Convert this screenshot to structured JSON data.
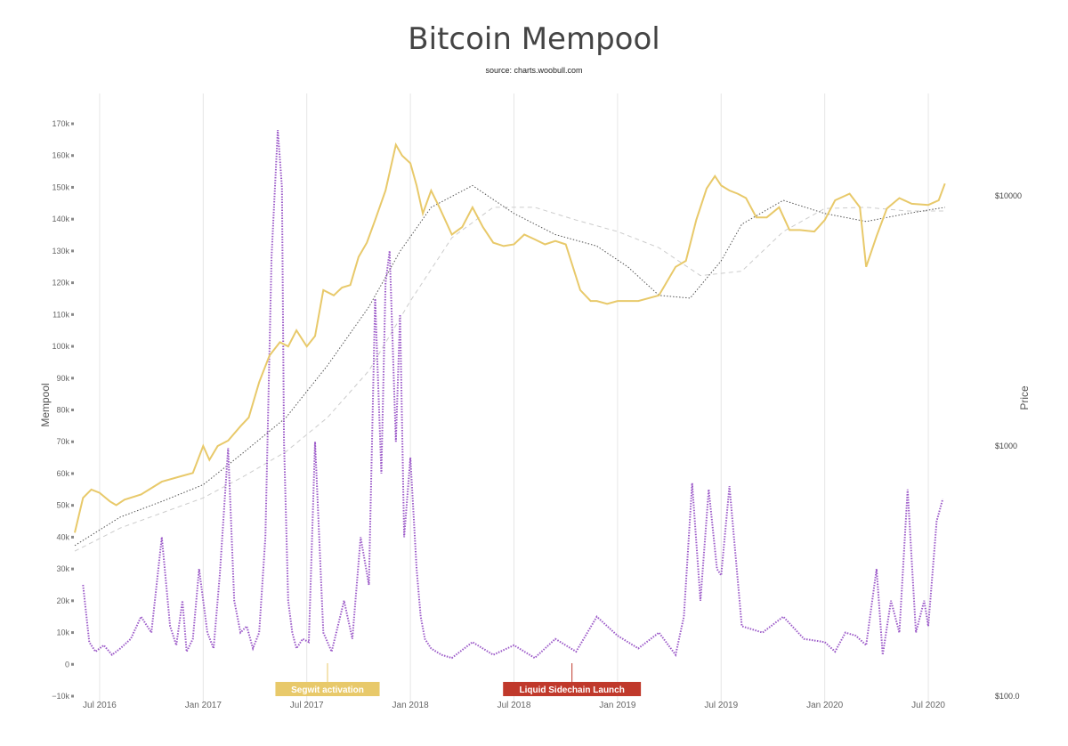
{
  "chart_data": {
    "type": "line",
    "title": "Bitcoin Mempool",
    "subtitle": "source: charts.woobull.com",
    "ylabel_left": "Mempool",
    "ylabel_right": "Price",
    "x_tick_labels": [
      "Jul 2016",
      "Jan 2017",
      "Jul 2017",
      "Jan 2018",
      "Jul 2018",
      "Jan 2019",
      "Jul 2019",
      "Jan 2020",
      "Jul 2020"
    ],
    "x_ticks_year": [
      2016.5,
      2017.0,
      2017.5,
      2018.0,
      2018.5,
      2019.0,
      2019.5,
      2020.0,
      2020.5
    ],
    "xlim": [
      2016.38,
      2020.59
    ],
    "ylim_left": [
      -10000,
      170000
    ],
    "y_left_ticks": [
      -10000,
      0,
      10000,
      20000,
      30000,
      40000,
      50000,
      60000,
      70000,
      80000,
      90000,
      100000,
      110000,
      120000,
      130000,
      140000,
      150000,
      160000,
      170000
    ],
    "y_left_tick_labels": [
      "−10k",
      "0",
      "10k",
      "20k",
      "30k",
      "40k",
      "50k",
      "60k",
      "70k",
      "80k",
      "90k",
      "100k",
      "110k",
      "120k",
      "130k",
      "140k",
      "150k",
      "160k",
      "170k"
    ],
    "y_right_scale": "log",
    "ylim_right": [
      100,
      12000
    ],
    "y_right_ticks": [
      100,
      1000,
      10000
    ],
    "y_right_tick_labels": [
      "$100.0",
      "$1000",
      "$10000"
    ],
    "grid": "vertical",
    "series": [
      {
        "key": "mempool",
        "axis": "left",
        "color": "#9b59c8",
        "style": "dotted",
        "x": [
          2016.42,
          2016.45,
          2016.48,
          2016.52,
          2016.56,
          2016.6,
          2016.65,
          2016.7,
          2016.75,
          2016.8,
          2016.84,
          2016.87,
          2016.9,
          2016.92,
          2016.95,
          2016.98,
          2017.02,
          2017.05,
          2017.08,
          2017.12,
          2017.15,
          2017.18,
          2017.21,
          2017.24,
          2017.27,
          2017.3,
          2017.33,
          2017.36,
          2017.38,
          2017.39,
          2017.41,
          2017.43,
          2017.45,
          2017.48,
          2017.51,
          2017.54,
          2017.58,
          2017.62,
          2017.65,
          2017.68,
          2017.72,
          2017.76,
          2017.8,
          2017.83,
          2017.86,
          2017.88,
          2017.9,
          2017.93,
          2017.95,
          2017.97,
          2018.0,
          2018.03,
          2018.05,
          2018.07,
          2018.1,
          2018.15,
          2018.2,
          2018.3,
          2018.4,
          2018.5,
          2018.6,
          2018.7,
          2018.8,
          2018.9,
          2019.0,
          2019.1,
          2019.2,
          2019.28,
          2019.32,
          2019.36,
          2019.4,
          2019.44,
          2019.48,
          2019.5,
          2019.54,
          2019.6,
          2019.7,
          2019.8,
          2019.9,
          2020.0,
          2020.05,
          2020.1,
          2020.15,
          2020.2,
          2020.25,
          2020.28,
          2020.32,
          2020.36,
          2020.4,
          2020.44,
          2020.48,
          2020.5,
          2020.54,
          2020.57
        ],
        "values": [
          25000,
          7000,
          4000,
          6000,
          3000,
          5000,
          8000,
          15000,
          10000,
          40000,
          12000,
          6000,
          20000,
          4000,
          8000,
          30000,
          10000,
          5000,
          28000,
          68000,
          20000,
          10000,
          12000,
          5000,
          10000,
          40000,
          128000,
          168000,
          150000,
          70000,
          20000,
          10000,
          5000,
          8000,
          7000,
          70000,
          10000,
          4000,
          12000,
          20000,
          8000,
          40000,
          25000,
          115000,
          60000,
          120000,
          130000,
          70000,
          110000,
          40000,
          65000,
          30000,
          15000,
          8000,
          5000,
          3000,
          2000,
          7000,
          3000,
          6000,
          2000,
          8000,
          4000,
          15000,
          9000,
          5000,
          10000,
          3000,
          15000,
          57000,
          20000,
          55000,
          30000,
          28000,
          56000,
          12000,
          10000,
          15000,
          8000,
          7000,
          4000,
          10000,
          9000,
          6000,
          30000,
          3000,
          20000,
          10000,
          55000,
          10000,
          20000,
          12000,
          45000,
          52000
        ]
      },
      {
        "key": "price",
        "axis": "right",
        "color": "#e8c96a",
        "style": "solid",
        "x": [
          2016.38,
          2016.42,
          2016.46,
          2016.5,
          2016.55,
          2016.58,
          2016.62,
          2016.7,
          2016.8,
          2016.9,
          2016.95,
          2017.0,
          2017.03,
          2017.07,
          2017.12,
          2017.18,
          2017.22,
          2017.27,
          2017.32,
          2017.37,
          2017.41,
          2017.45,
          2017.5,
          2017.54,
          2017.58,
          2017.63,
          2017.67,
          2017.71,
          2017.75,
          2017.79,
          2017.83,
          2017.88,
          2017.93,
          2017.96,
          2018.0,
          2018.03,
          2018.06,
          2018.1,
          2018.14,
          2018.2,
          2018.25,
          2018.3,
          2018.35,
          2018.4,
          2018.45,
          2018.5,
          2018.55,
          2018.6,
          2018.65,
          2018.7,
          2018.75,
          2018.82,
          2018.87,
          2018.9,
          2018.95,
          2019.0,
          2019.1,
          2019.2,
          2019.28,
          2019.33,
          2019.38,
          2019.43,
          2019.47,
          2019.5,
          2019.54,
          2019.58,
          2019.62,
          2019.67,
          2019.72,
          2019.78,
          2019.83,
          2019.88,
          2019.95,
          2020.0,
          2020.05,
          2020.12,
          2020.17,
          2020.2,
          2020.25,
          2020.3,
          2020.36,
          2020.42,
          2020.5,
          2020.55,
          2020.58
        ],
        "values": [
          450,
          620,
          670,
          650,
          600,
          580,
          610,
          640,
          720,
          760,
          780,
          1000,
          880,
          1000,
          1050,
          1200,
          1300,
          1800,
          2300,
          2600,
          2500,
          2900,
          2500,
          2750,
          4200,
          4000,
          4300,
          4400,
          5700,
          6500,
          8000,
          10500,
          16000,
          14500,
          13500,
          11000,
          8500,
          10500,
          9000,
          7000,
          7500,
          9000,
          7500,
          6500,
          6300,
          6400,
          7000,
          6700,
          6400,
          6600,
          6400,
          4200,
          3800,
          3800,
          3700,
          3800,
          3800,
          4000,
          5200,
          5500,
          8000,
          10700,
          12000,
          11000,
          10500,
          10200,
          9800,
          8200,
          8200,
          9000,
          7300,
          7300,
          7200,
          8000,
          9600,
          10200,
          9000,
          5200,
          6900,
          8900,
          9800,
          9300,
          9200,
          9600,
          11200
        ]
      },
      {
        "key": "ma-dotted",
        "axis": "right",
        "color": "#555555",
        "style": "dotted",
        "x": [
          2016.38,
          2016.6,
          2016.8,
          2017.0,
          2017.2,
          2017.4,
          2017.6,
          2017.8,
          2017.95,
          2018.1,
          2018.3,
          2018.5,
          2018.7,
          2018.9,
          2019.05,
          2019.2,
          2019.35,
          2019.5,
          2019.6,
          2019.8,
          2020.0,
          2020.2,
          2020.4,
          2020.58
        ],
        "values": [
          400,
          520,
          600,
          700,
          950,
          1300,
          2100,
          3600,
          6000,
          9000,
          11000,
          8500,
          7000,
          6300,
          5200,
          4000,
          3900,
          5500,
          7700,
          9600,
          8500,
          7900,
          8500,
          9000
        ]
      },
      {
        "key": "ma-dashed",
        "axis": "right",
        "color": "#cccccc",
        "style": "dashed",
        "x": [
          2016.38,
          2016.6,
          2016.8,
          2017.0,
          2017.2,
          2017.4,
          2017.6,
          2017.8,
          2018.0,
          2018.2,
          2018.4,
          2018.6,
          2018.8,
          2019.0,
          2019.2,
          2019.4,
          2019.6,
          2019.8,
          2020.0,
          2020.2,
          2020.4,
          2020.58
        ],
        "values": [
          380,
          470,
          540,
          620,
          760,
          950,
          1300,
          2000,
          3800,
          6800,
          9000,
          9000,
          8000,
          7200,
          6200,
          4800,
          5000,
          7200,
          8900,
          9000,
          8700,
          8700
        ]
      }
    ],
    "annotations": [
      {
        "label": "Segwit activation",
        "x": 2017.6,
        "color": "#e8c96a"
      },
      {
        "label": "Liquid Sidechain Launch",
        "x": 2018.78,
        "color": "#c0392b"
      }
    ]
  }
}
